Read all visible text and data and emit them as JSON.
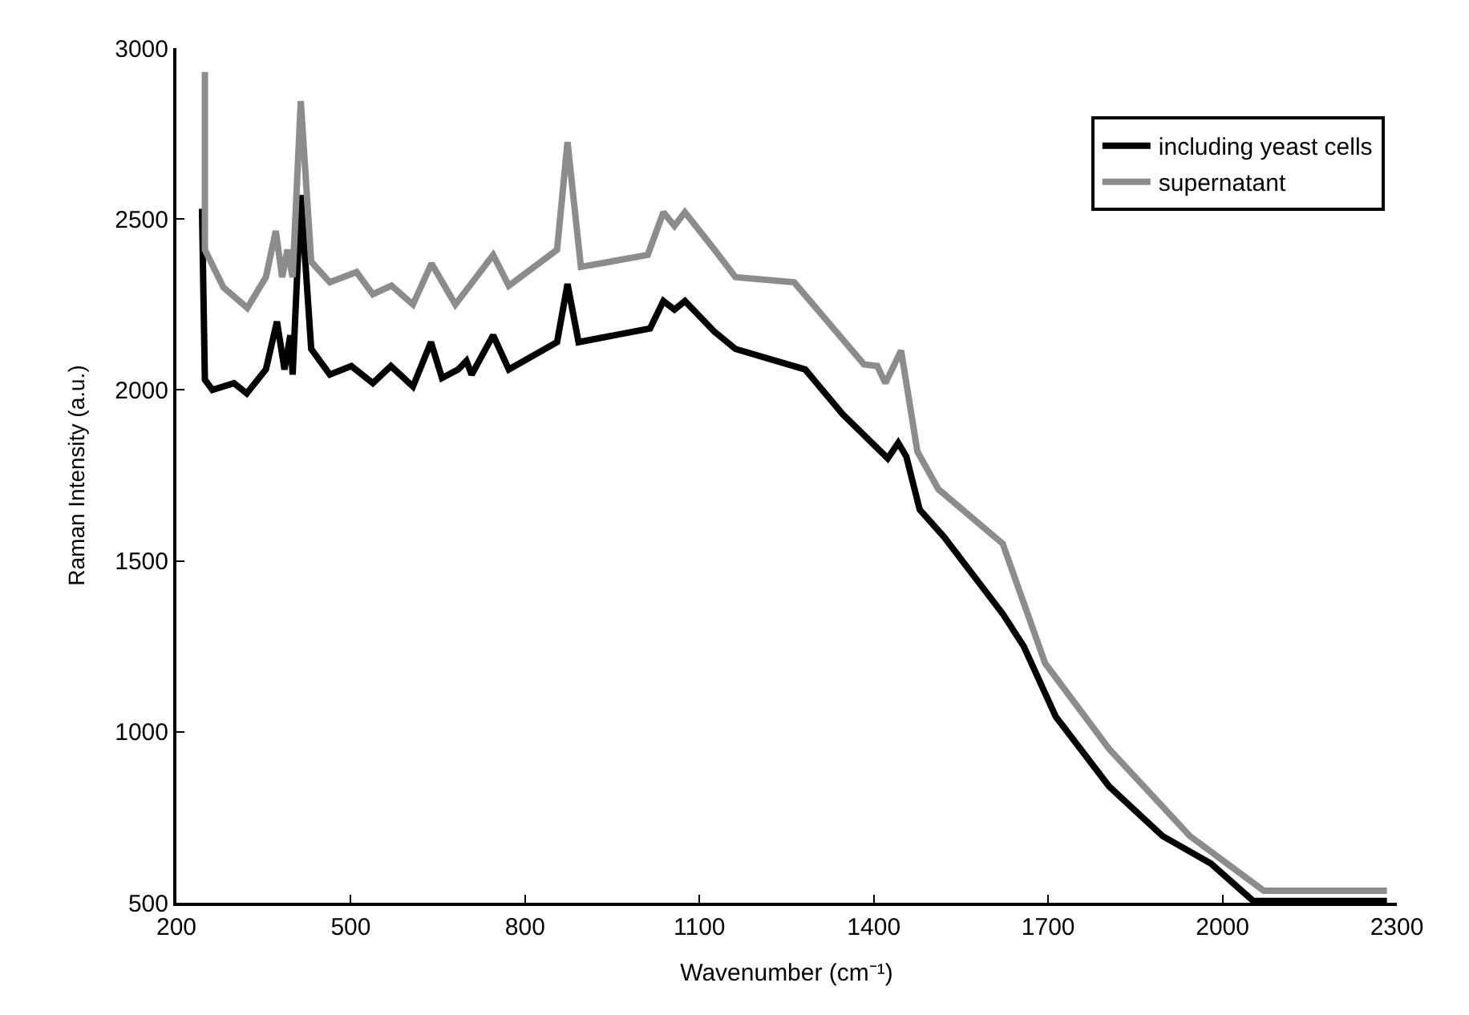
{
  "chart_data": {
    "type": "line",
    "xlabel": "Wavenumber (cm⁻¹)",
    "ylabel": "Raman Intensity (a.u.)",
    "xlim": [
      200,
      2300
    ],
    "xticks": [
      200,
      500,
      800,
      1100,
      1400,
      1700,
      2000,
      2300
    ],
    "ylim": [
      500,
      3000
    ],
    "yticks": [
      500,
      1000,
      1500,
      2000,
      2500,
      3000
    ],
    "legend": "top right",
    "series": [
      {
        "name": "including yeast cells",
        "color": "#000000",
        "x": [
          244,
          249,
          262,
          299,
          321,
          354,
          373,
          386,
          396,
          400,
          414,
          432,
          464,
          501,
          538,
          569,
          607,
          638,
          657,
          685,
          699,
          708,
          745,
          772,
          855,
          873,
          892,
          1015,
          1038,
          1057,
          1075,
          1126,
          1162,
          1282,
          1346,
          1424,
          1442,
          1456,
          1479,
          1521,
          1622,
          1658,
          1713,
          1805,
          1897,
          1980,
          2053,
          2283
        ],
        "values": [
          2530,
          2030,
          2000,
          2020,
          1990,
          2060,
          2200,
          2060,
          2160,
          2045,
          2570,
          2120,
          2045,
          2070,
          2020,
          2070,
          2010,
          2140,
          2035,
          2060,
          2085,
          2045,
          2160,
          2060,
          2140,
          2310,
          2140,
          2180,
          2260,
          2235,
          2260,
          2170,
          2120,
          2060,
          1930,
          1800,
          1845,
          1805,
          1650,
          1570,
          1345,
          1250,
          1045,
          840,
          695,
          615,
          505,
          505
        ]
      },
      {
        "name": "supernatant",
        "color": "#8c8c8c",
        "x": [
          249,
          249,
          281,
          322,
          354,
          371,
          382,
          391,
          400,
          414,
          432,
          464,
          510,
          538,
          570,
          607,
          639,
          680,
          745,
          772,
          855,
          873,
          896,
          1011,
          1038,
          1057,
          1075,
          1126,
          1162,
          1263,
          1383,
          1406,
          1420,
          1447,
          1475,
          1511,
          1622,
          1626,
          1695,
          1805,
          1944,
          2071,
          2283
        ],
        "values": [
          2930,
          2410,
          2300,
          2240,
          2330,
          2465,
          2330,
          2410,
          2330,
          2845,
          2375,
          2315,
          2345,
          2280,
          2305,
          2250,
          2370,
          2250,
          2395,
          2305,
          2410,
          2725,
          2360,
          2395,
          2520,
          2480,
          2520,
          2410,
          2330,
          2315,
          2075,
          2070,
          2020,
          2115,
          1820,
          1710,
          1550,
          1530,
          1200,
          950,
          695,
          535,
          535
        ]
      }
    ]
  }
}
